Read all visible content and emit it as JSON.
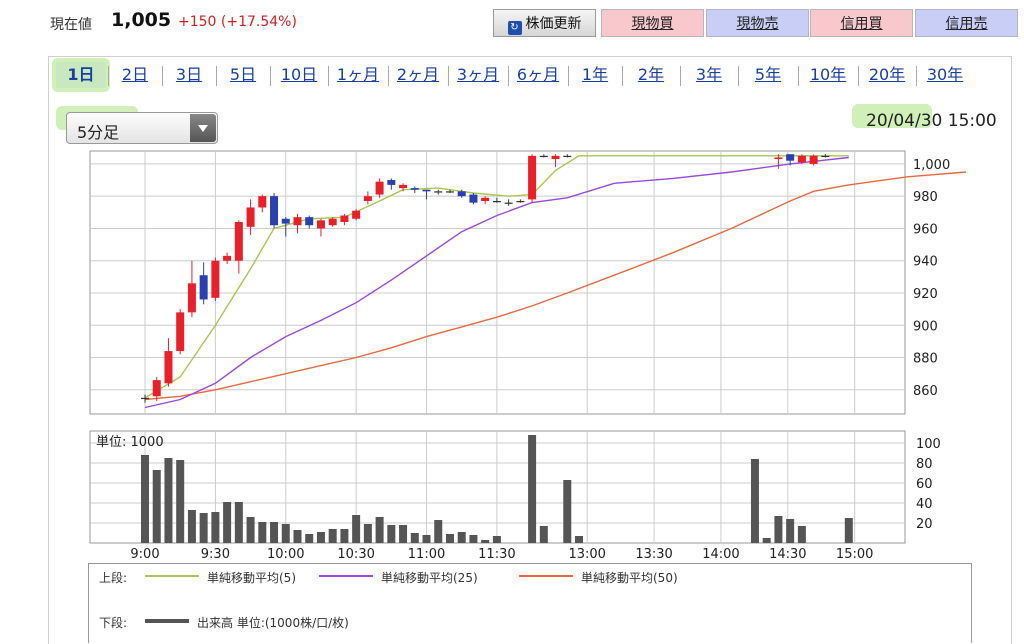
{
  "header": {
    "price_label": "現在値",
    "price_value": "1,005",
    "price_change": "+150 (+17.54%)",
    "buttons": [
      {
        "label": "株価更新",
        "style": "refresh"
      },
      {
        "label": "現物買",
        "style": "pink"
      },
      {
        "label": "現物売",
        "style": "blue"
      },
      {
        "label": "信用買",
        "style": "pink"
      },
      {
        "label": "信用売",
        "style": "blue"
      }
    ]
  },
  "period_tabs": [
    "1日",
    "2日",
    "3日",
    "5日",
    "10日",
    "1ヶ月",
    "2ヶ月",
    "3ヶ月",
    "6ヶ月",
    "1年",
    "2年",
    "3年",
    "5年",
    "10年",
    "20年",
    "30年"
  ],
  "active_tab": "1日",
  "interval_select": "5分足",
  "datetime": "20/04/30 15:00",
  "legend": {
    "upper_label": "上段:",
    "lower_label": "下段:",
    "ma5": "単純移動平均(5)",
    "ma25": "単純移動平均(25)",
    "ma50": "単純移動平均(50)",
    "volume": "出来高 単位:(1000株/口/枚)"
  },
  "colors": {
    "up": "#e8202a",
    "down": "#2a3fb0",
    "ma5": "#a8c850",
    "ma25": "#9a4ad8",
    "ma50": "#e86a40",
    "volume": "#555555",
    "grid": "#cccccc"
  },
  "chart_data": [
    {
      "type": "candlestick",
      "y_ticks": [
        860,
        880,
        900,
        920,
        940,
        960,
        980,
        1000
      ],
      "ylim": [
        845,
        1008
      ],
      "x_ticks": [
        "9:00",
        "9:30",
        "10:00",
        "10:30",
        "11:00",
        "11:30",
        "13:00",
        "13:30",
        "14:00",
        "14:30",
        "15:00"
      ],
      "candles": [
        {
          "i": 0,
          "o": 855,
          "c": 855,
          "h": 857,
          "l": 852
        },
        {
          "i": 1,
          "o": 856,
          "c": 866,
          "h": 868,
          "l": 853
        },
        {
          "i": 2,
          "o": 864,
          "c": 884,
          "h": 892,
          "l": 862
        },
        {
          "i": 3,
          "o": 884,
          "c": 908,
          "h": 910,
          "l": 882
        },
        {
          "i": 4,
          "o": 908,
          "c": 926,
          "h": 940,
          "l": 905
        },
        {
          "i": 5,
          "o": 931,
          "c": 916,
          "h": 939,
          "l": 913
        },
        {
          "i": 6,
          "o": 917,
          "c": 940,
          "h": 942,
          "l": 915
        },
        {
          "i": 7,
          "o": 940,
          "c": 943,
          "h": 945,
          "l": 938
        },
        {
          "i": 8,
          "o": 940,
          "c": 964,
          "h": 965,
          "l": 932
        },
        {
          "i": 9,
          "o": 961,
          "c": 973,
          "h": 978,
          "l": 956
        },
        {
          "i": 10,
          "o": 973,
          "c": 980,
          "h": 981,
          "l": 970
        },
        {
          "i": 11,
          "o": 980,
          "c": 962,
          "h": 982,
          "l": 960
        },
        {
          "i": 12,
          "o": 966,
          "c": 963,
          "h": 967,
          "l": 955
        },
        {
          "i": 13,
          "o": 962,
          "c": 967,
          "h": 969,
          "l": 957
        },
        {
          "i": 14,
          "o": 967,
          "c": 962,
          "h": 968,
          "l": 960
        },
        {
          "i": 15,
          "o": 960,
          "c": 965,
          "h": 966,
          "l": 955
        },
        {
          "i": 16,
          "o": 962,
          "c": 966,
          "h": 967,
          "l": 961
        },
        {
          "i": 17,
          "o": 964,
          "c": 968,
          "h": 969,
          "l": 962
        },
        {
          "i": 18,
          "o": 966,
          "c": 971,
          "h": 972,
          "l": 965
        },
        {
          "i": 19,
          "o": 977,
          "c": 980,
          "h": 983,
          "l": 975
        },
        {
          "i": 20,
          "o": 981,
          "c": 989,
          "h": 991,
          "l": 979
        },
        {
          "i": 21,
          "o": 990,
          "c": 987,
          "h": 991,
          "l": 984
        },
        {
          "i": 22,
          "o": 985,
          "c": 987,
          "h": 988,
          "l": 983
        },
        {
          "i": 23,
          "o": 985,
          "c": 984,
          "h": 986,
          "l": 982
        },
        {
          "i": 24,
          "o": 984,
          "c": 983,
          "h": 984,
          "l": 978
        },
        {
          "i": 25,
          "o": 983,
          "c": 983,
          "h": 984,
          "l": 981
        },
        {
          "i": 26,
          "o": 983,
          "c": 983,
          "h": 984,
          "l": 982
        },
        {
          "i": 27,
          "o": 983,
          "c": 980,
          "h": 984,
          "l": 979
        },
        {
          "i": 28,
          "o": 981,
          "c": 976,
          "h": 982,
          "l": 975
        },
        {
          "i": 29,
          "o": 977,
          "c": 979,
          "h": 980,
          "l": 975
        },
        {
          "i": 30,
          "o": 977,
          "c": 977,
          "h": 979,
          "l": 976
        },
        {
          "i": 31,
          "o": 976,
          "c": 976,
          "h": 978,
          "l": 974
        },
        {
          "i": 32,
          "o": 977,
          "c": 977,
          "h": 978,
          "l": 976
        },
        {
          "i": 33,
          "o": 978,
          "c": 1005,
          "h": 1006,
          "l": 976
        },
        {
          "i": 34,
          "o": 1005,
          "c": 1005,
          "h": 1006,
          "l": 1004
        },
        {
          "i": 35,
          "o": 1003,
          "c": 1005,
          "h": 1006,
          "l": 998
        },
        {
          "i": 36,
          "o": 1005,
          "c": 1005,
          "h": 1006,
          "l": 1004
        },
        {
          "i": 54,
          "o": 1003,
          "c": 1004,
          "h": 1006,
          "l": 997
        },
        {
          "i": 55,
          "o": 1006,
          "c": 1002,
          "h": 1006,
          "l": 999
        },
        {
          "i": 56,
          "o": 1001,
          "c": 1005,
          "h": 1006,
          "l": 1000
        },
        {
          "i": 57,
          "o": 1000,
          "c": 1005,
          "h": 1006,
          "l": 999
        },
        {
          "i": 58,
          "o": 1005,
          "c": 1005,
          "h": 1006,
          "l": 1004
        }
      ],
      "ma5": [
        [
          0,
          855
        ],
        [
          3,
          868
        ],
        [
          6,
          900
        ],
        [
          9,
          935
        ],
        [
          11,
          960
        ],
        [
          14,
          966
        ],
        [
          17,
          967
        ],
        [
          20,
          977
        ],
        [
          22,
          984
        ],
        [
          25,
          985
        ],
        [
          28,
          982
        ],
        [
          31,
          980
        ],
        [
          33,
          981
        ],
        [
          35,
          996
        ],
        [
          37,
          1005
        ],
        [
          60,
          1005
        ]
      ],
      "ma25": [
        [
          0,
          849
        ],
        [
          3,
          854
        ],
        [
          6,
          864
        ],
        [
          9,
          880
        ],
        [
          12,
          893
        ],
        [
          15,
          903
        ],
        [
          18,
          914
        ],
        [
          21,
          928
        ],
        [
          24,
          943
        ],
        [
          27,
          958
        ],
        [
          30,
          968
        ],
        [
          33,
          976
        ],
        [
          36,
          979
        ],
        [
          40,
          988
        ],
        [
          45,
          991
        ],
        [
          50,
          995
        ],
        [
          55,
          1000
        ],
        [
          60,
          1004
        ]
      ],
      "ma50": [
        [
          0,
          854
        ],
        [
          3,
          856
        ],
        [
          6,
          860
        ],
        [
          9,
          865
        ],
        [
          12,
          870
        ],
        [
          15,
          875
        ],
        [
          18,
          880
        ],
        [
          21,
          886
        ],
        [
          24,
          893
        ],
        [
          27,
          899
        ],
        [
          30,
          905
        ],
        [
          33,
          912
        ],
        [
          36,
          920
        ],
        [
          40,
          931
        ],
        [
          45,
          945
        ],
        [
          50,
          960
        ],
        [
          55,
          977
        ],
        [
          57,
          983
        ],
        [
          60,
          987
        ],
        [
          65,
          992
        ],
        [
          70,
          995
        ]
      ]
    },
    {
      "type": "bar",
      "title": "単位: 1000",
      "y_ticks": [
        20,
        40,
        60,
        80,
        100
      ],
      "ylim": [
        0,
        112
      ],
      "volumes": [
        [
          0,
          88
        ],
        [
          1,
          73
        ],
        [
          2,
          85
        ],
        [
          3,
          83
        ],
        [
          4,
          33
        ],
        [
          5,
          30
        ],
        [
          6,
          31
        ],
        [
          7,
          41
        ],
        [
          8,
          41
        ],
        [
          9,
          26
        ],
        [
          10,
          21
        ],
        [
          11,
          21
        ],
        [
          12,
          19
        ],
        [
          13,
          13
        ],
        [
          14,
          9
        ],
        [
          15,
          11
        ],
        [
          16,
          14
        ],
        [
          17,
          14
        ],
        [
          18,
          28
        ],
        [
          19,
          19
        ],
        [
          20,
          26
        ],
        [
          21,
          18
        ],
        [
          22,
          18
        ],
        [
          23,
          10
        ],
        [
          24,
          8
        ],
        [
          25,
          23
        ],
        [
          26,
          9
        ],
        [
          27,
          11
        ],
        [
          28,
          8
        ],
        [
          29,
          3
        ],
        [
          30,
          7
        ],
        [
          33,
          108
        ],
        [
          34,
          17
        ],
        [
          36,
          63
        ],
        [
          37,
          7
        ],
        [
          52,
          84
        ],
        [
          53,
          5
        ],
        [
          54,
          27
        ],
        [
          55,
          24
        ],
        [
          56,
          17
        ],
        [
          60,
          25
        ]
      ]
    }
  ]
}
